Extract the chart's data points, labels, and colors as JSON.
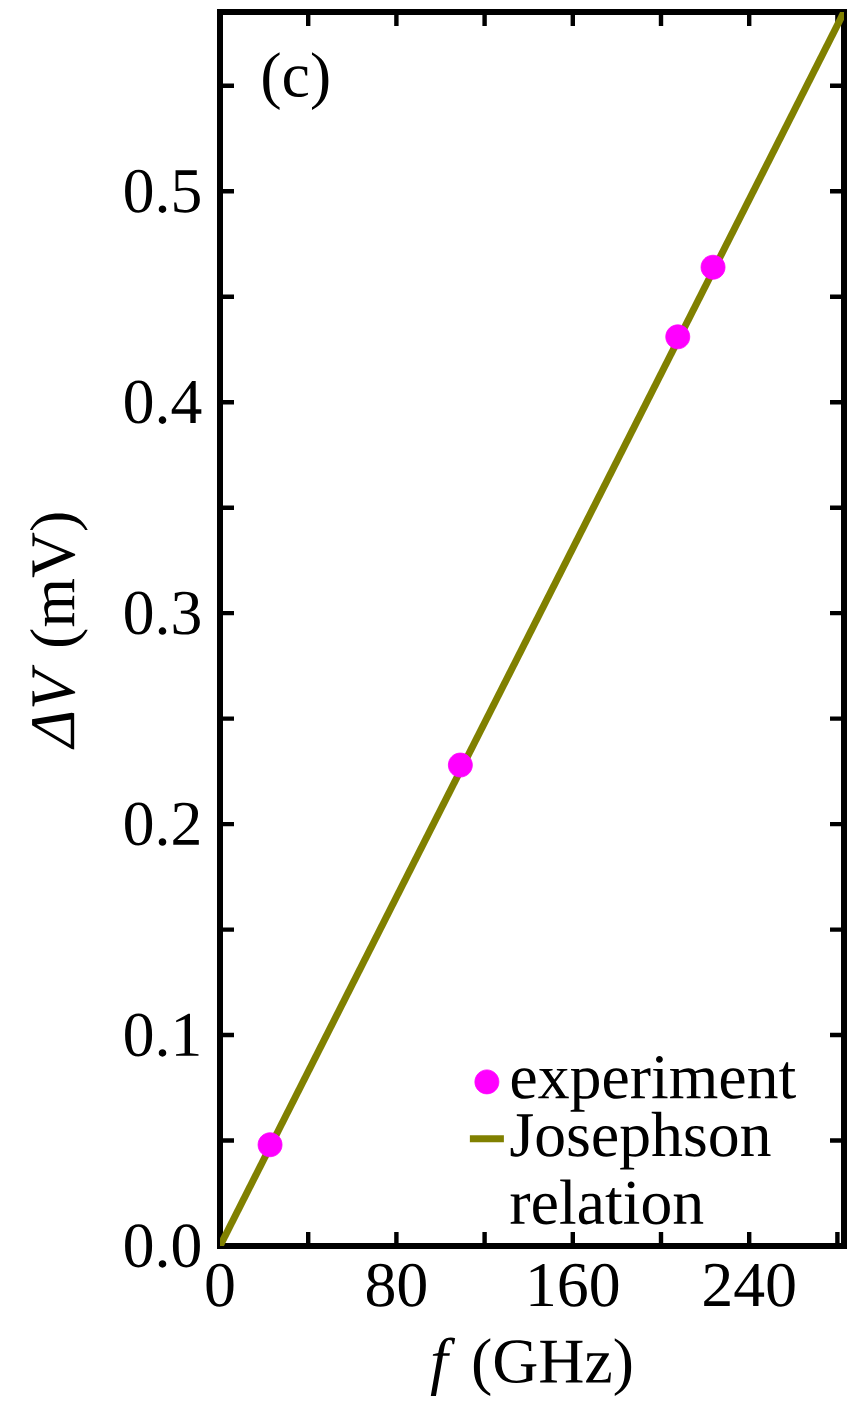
{
  "chart_data": {
    "type": "scatter",
    "xlabel": "*f* (GHz)",
    "ylabel": "*ΔV* (mV)",
    "annotations": [
      "(c)"
    ],
    "xlim": [
      0,
      283
    ],
    "ylim": [
      0,
      0.585
    ],
    "xticks": [
      0,
      {
        "value": 40,
        "label": null
      },
      80,
      {
        "value": 120,
        "label": null
      },
      160,
      {
        "value": 200,
        "label": null
      },
      240,
      {
        "value": 280,
        "label": null
      }
    ],
    "yticks": [
      {
        "value": 0,
        "label": "0.0"
      },
      {
        "value": 0.05,
        "label": null
      },
      0.1,
      {
        "value": 0.15,
        "label": null
      },
      0.2,
      {
        "value": 0.25,
        "label": null
      },
      0.3,
      {
        "value": 0.35,
        "label": null
      },
      0.4,
      {
        "value": 0.45,
        "label": null
      },
      0.5,
      {
        "value": 0.55,
        "label": null
      }
    ],
    "legend": "bottom right",
    "grid": false,
    "series": [
      {
        "name": "experiment",
        "marker": "circle",
        "color": "#ff00ff",
        "x": [
          22.7,
          109,
          207.6,
          223.6
        ],
        "values": [
          0.048,
          0.228,
          0.431,
          0.464
        ]
      },
      {
        "name": "Josephson relation",
        "type": "line",
        "marker": "none",
        "color": "#808000",
        "x": [
          0,
          283
        ],
        "values": [
          0,
          0.585
        ]
      }
    ]
  }
}
